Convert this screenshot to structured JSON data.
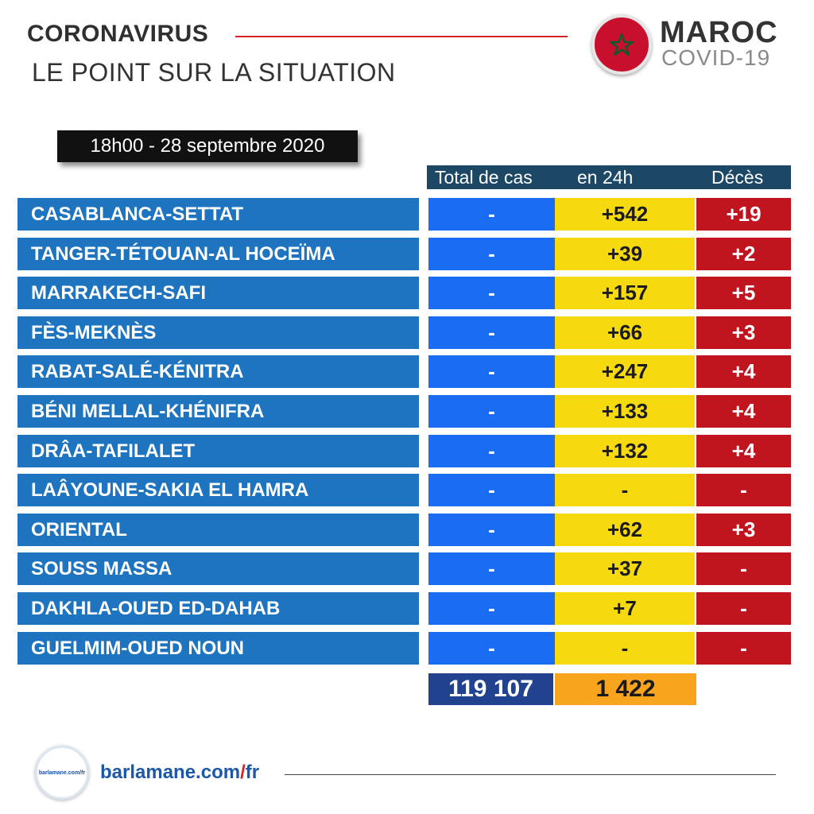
{
  "header": {
    "title": "CORONAVIRUS",
    "subtitle": "LE POINT SUR LA SITUATION",
    "country": "MAROC",
    "tag": "COVID-19",
    "flag_icon": "morocco-flag-icon",
    "accent_color": "#d4222c"
  },
  "date": "18h00  - 28 septembre 2020",
  "columns": {
    "total": "Total de cas",
    "new": "en 24h",
    "deaths": "Décès"
  },
  "colors": {
    "region": "#1f74bf",
    "total": "#1a6df2",
    "new": "#f6d90e",
    "deaths": "#c0151f",
    "total_sum": "#21428f",
    "new_sum": "#f8a41c"
  },
  "regions": [
    {
      "name": "CASABLANCA-SETTAT",
      "total": "-",
      "new": "+542",
      "deaths": "+19"
    },
    {
      "name": "TANGER-TÉTOUAN-AL HOCEÏMA",
      "total": "-",
      "new": "+39",
      "deaths": "+2"
    },
    {
      "name": "MARRAKECH-SAFI",
      "total": "-",
      "new": "+157",
      "deaths": "+5"
    },
    {
      "name": "FÈS-MEKNÈS",
      "total": "-",
      "new": "+66",
      "deaths": "+3"
    },
    {
      "name": "RABAT-SALÉ-KÉNITRA",
      "total": "-",
      "new": "+247",
      "deaths": "+4"
    },
    {
      "name": "BÉNI MELLAL-KHÉNIFRA",
      "total": "-",
      "new": "+133",
      "deaths": "+4"
    },
    {
      "name": "DRÂA-TAFILALET",
      "total": "-",
      "new": "+132",
      "deaths": "+4"
    },
    {
      "name": "LAÂYOUNE-SAKIA EL HAMRA",
      "total": "-",
      "new": "-",
      "deaths": "-"
    },
    {
      "name": "ORIENTAL",
      "total": "-",
      "new": "+62",
      "deaths": "+3"
    },
    {
      "name": "SOUSS MASSA",
      "total": "-",
      "new": "+37",
      "deaths": "-"
    },
    {
      "name": "DAKHLA-OUED ED-DAHAB",
      "total": "-",
      "new": "+7",
      "deaths": "-"
    },
    {
      "name": "GUELMIM-OUED NOUN",
      "total": "-",
      "new": "-",
      "deaths": "-"
    }
  ],
  "totals": {
    "cases": "119 107",
    "new": "1 422"
  },
  "footer": {
    "logo_text": "barlamane.com/fr",
    "url_part1": "barlamane.com",
    "url_sep": "/",
    "url_part2": "fr"
  }
}
